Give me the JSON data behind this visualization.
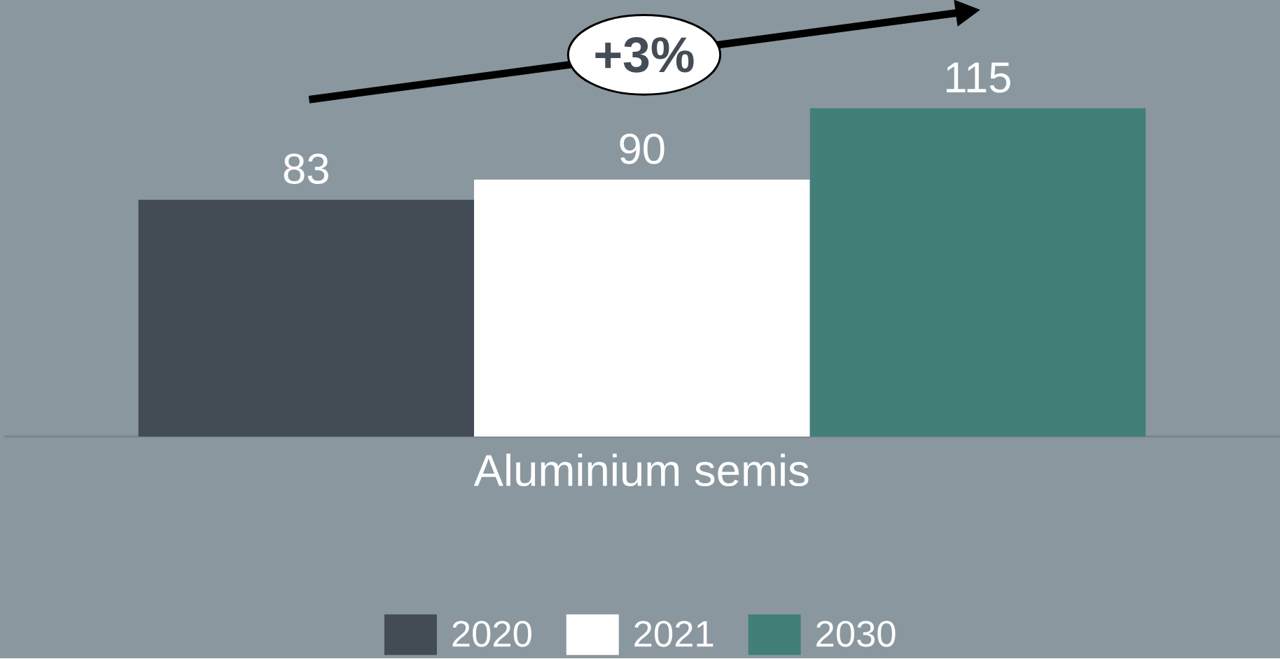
{
  "chart_data": {
    "type": "bar",
    "categories": [
      null
    ],
    "xlabel": "Aluminium semis",
    "series": [
      {
        "name": "2020",
        "color": "#434b54",
        "values": [
          83
        ]
      },
      {
        "name": "2021",
        "color": "#ffffff",
        "values": [
          90
        ]
      },
      {
        "name": "2030",
        "color": "#417f78",
        "values": [
          115
        ]
      }
    ],
    "data_labels": true,
    "legend": "bottom",
    "tick_labels": false,
    "annotations": [
      "+3%"
    ]
  }
}
